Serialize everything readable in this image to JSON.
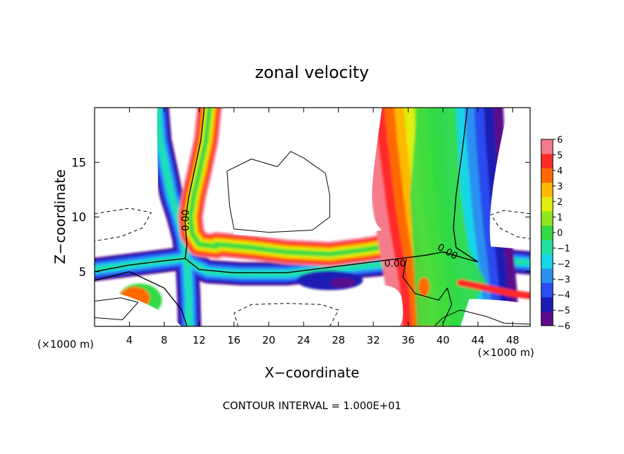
{
  "chart_data": {
    "type": "heatmap",
    "title": "zonal velocity",
    "xlabel": "X−coordinate",
    "ylabel": "Z−coordinate",
    "x_unit": "(×1000 m)",
    "y_unit": "(×1000 m)",
    "footer": "CONTOUR INTERVAL = 1.000E+01",
    "xlim": [
      0,
      50
    ],
    "ylim": [
      0,
      20
    ],
    "x_ticks": [
      4,
      8,
      12,
      16,
      20,
      24,
      28,
      32,
      36,
      40,
      44,
      48
    ],
    "y_ticks": [
      5,
      10,
      15
    ],
    "colorbar": {
      "min": -6,
      "max": 6,
      "ticks": [
        "6",
        "5",
        "4",
        "3",
        "2",
        "1",
        "0",
        "−1",
        "−2",
        "−3",
        "−4",
        "−5",
        "−6"
      ],
      "colors": [
        "#5a0a8c",
        "#1a1ab4",
        "#2a4cf0",
        "#2a90f0",
        "#19d6e6",
        "#22e0a0",
        "#33d944",
        "#8fe61f",
        "#e0ee10",
        "#ffb800",
        "#ff6a00",
        "#ff2a2a",
        "#f57b8a"
      ]
    },
    "contour_labels": [
      {
        "text": "0.00",
        "x": 10.5,
        "y": 9.7,
        "angle": -90
      },
      {
        "text": "0.00",
        "x": 34.5,
        "y": 5.7,
        "angle": 0
      },
      {
        "text": "0.00",
        "x": 40.5,
        "y": 6.8,
        "angle": 30
      }
    ],
    "grid": false
  }
}
